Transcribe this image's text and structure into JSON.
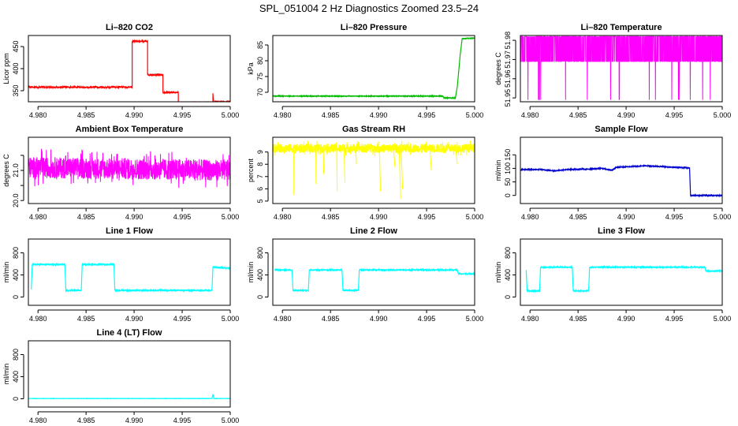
{
  "figure": {
    "suptitle": "SPL_051004  2 Hz Diagnostics Zoomed 23.5–24"
  },
  "chart_data": [
    {
      "type": "line",
      "title": "Li–820 CO2",
      "ylabel": "Licor ppm",
      "color": "#ff0000",
      "xlim": [
        4.979,
        5.0
      ],
      "xticks": [
        4.98,
        4.985,
        4.99,
        4.995,
        5.0
      ],
      "xtick_labels": [
        "4.980",
        "4.985",
        "4.990",
        "4.995",
        "5.000"
      ],
      "ylim": [
        325,
        475
      ],
      "yticks": [
        350,
        400,
        450
      ],
      "ytick_labels": [
        "350",
        "400",
        "450"
      ],
      "pattern": "steps",
      "noise": 1.5,
      "points": [
        [
          4.979,
          358
        ],
        [
          4.9898,
          358
        ],
        [
          4.9898,
          462
        ],
        [
          4.9914,
          462
        ],
        [
          4.9914,
          386
        ],
        [
          4.993,
          386
        ],
        [
          4.993,
          346
        ],
        [
          4.9946,
          346
        ],
        [
          4.9946,
          322
        ],
        [
          4.9982,
          322
        ],
        [
          4.9982,
          343
        ],
        [
          4.9983,
          316
        ],
        [
          4.9984,
          325
        ],
        [
          5.0,
          325
        ]
      ]
    },
    {
      "type": "line",
      "title": "Li–820 Pressure",
      "ylabel": "kPa",
      "color": "#00bb00",
      "xlim": [
        4.979,
        5.0
      ],
      "xticks": [
        4.98,
        4.985,
        4.99,
        4.995,
        5.0
      ],
      "xtick_labels": [
        "4.980",
        "4.985",
        "4.990",
        "4.995",
        "5.000"
      ],
      "ylim": [
        67,
        88
      ],
      "yticks": [
        70,
        75,
        80,
        85
      ],
      "ytick_labels": [
        "70",
        "75",
        "80",
        "85"
      ],
      "pattern": "steps",
      "noise": 0.1,
      "points": [
        [
          4.979,
          68.8
        ],
        [
          4.9967,
          68.8
        ],
        [
          4.9968,
          68.2
        ],
        [
          4.998,
          68.2
        ],
        [
          4.9982,
          72
        ],
        [
          4.9985,
          82
        ],
        [
          4.9987,
          87
        ],
        [
          5.0,
          87.2
        ]
      ]
    },
    {
      "type": "line",
      "title": "Li–820 Temperature",
      "ylabel": "degrees C",
      "color": "#ff00ff",
      "xlim": [
        4.979,
        5.0
      ],
      "xticks": [
        4.98,
        4.985,
        4.99,
        4.995,
        5.0
      ],
      "xtick_labels": [
        "4.980",
        "4.985",
        "4.990",
        "4.995",
        "5.000"
      ],
      "ylim": [
        51.948,
        51.9825
      ],
      "yticks": [
        51.95,
        51.96,
        51.97,
        51.98
      ],
      "ytick_labels": [
        "51.95",
        "51.96",
        "51.97",
        "51.98",
        ""
      ],
      "pattern": "binary",
      "low": 51.969,
      "high": 51.982,
      "spike_low": 51.949,
      "points": [
        [
          4.979,
          51.982
        ],
        [
          5.0,
          51.982
        ]
      ]
    },
    {
      "type": "line",
      "title": "Ambient Box Temperature",
      "ylabel": "degrees C",
      "color": "#ff00ff",
      "xlim": [
        4.979,
        5.0
      ],
      "xticks": [
        4.98,
        4.985,
        4.99,
        4.995,
        5.0
      ],
      "xtick_labels": [
        "4.980",
        "4.985",
        "4.990",
        "4.995",
        "5.000"
      ],
      "ylim": [
        19.9,
        22.1
      ],
      "yticks": [
        20.0,
        20.5,
        21.0,
        21.5
      ],
      "ytick_labels": [
        "20.0",
        "",
        "21.0",
        ""
      ],
      "pattern": "noisy",
      "noise": 0.35,
      "points": [
        [
          4.979,
          21.1
        ],
        [
          5.0,
          21.0
        ]
      ]
    },
    {
      "type": "line",
      "title": "Gas Stream RH",
      "ylabel": "percent",
      "color": "#ffff00",
      "xlim": [
        4.979,
        5.0
      ],
      "xticks": [
        4.98,
        4.985,
        4.99,
        4.995,
        5.0
      ],
      "xtick_labels": [
        "4.980",
        "4.985",
        "4.990",
        "4.995",
        "5.000"
      ],
      "ylim": [
        4.8,
        10.2
      ],
      "yticks": [
        5,
        6,
        7,
        8,
        9
      ],
      "ytick_labels": [
        "5",
        "6",
        "7",
        "8",
        "9"
      ],
      "pattern": "noisy_spikes",
      "noise": 0.35,
      "spikes": [
        [
          4.9812,
          5.5
        ],
        [
          4.9835,
          6.4
        ],
        [
          4.9843,
          7.2
        ],
        [
          4.9857,
          5.8
        ],
        [
          4.9865,
          6.5
        ],
        [
          4.9877,
          8.0
        ],
        [
          4.9902,
          5.8
        ],
        [
          4.9917,
          7.8
        ],
        [
          4.9923,
          5.2
        ],
        [
          4.9925,
          6.0
        ],
        [
          4.9955,
          7.5
        ],
        [
          4.9982,
          8.0
        ]
      ],
      "points": [
        [
          4.979,
          9.3
        ],
        [
          5.0,
          9.3
        ]
      ]
    },
    {
      "type": "line",
      "title": "Sample Flow",
      "ylabel": "ml/min",
      "color": "#0000cc",
      "xlim": [
        4.979,
        5.0
      ],
      "xticks": [
        4.98,
        4.985,
        4.99,
        4.995,
        5.0
      ],
      "xtick_labels": [
        "4.980",
        "4.985",
        "4.990",
        "4.995",
        "5.000"
      ],
      "ylim": [
        -30,
        215
      ],
      "yticks": [
        0,
        50,
        100,
        150
      ],
      "ytick_labels": [
        "0",
        "50",
        "100",
        "150"
      ],
      "pattern": "steps",
      "noise": 1.5,
      "points": [
        [
          4.979,
          95
        ],
        [
          4.981,
          96
        ],
        [
          4.9825,
          91
        ],
        [
          4.984,
          96
        ],
        [
          4.986,
          97
        ],
        [
          4.9875,
          100
        ],
        [
          4.9885,
          93
        ],
        [
          4.989,
          104
        ],
        [
          4.992,
          110
        ],
        [
          4.995,
          104
        ],
        [
          4.9966,
          102
        ],
        [
          4.9967,
          0
        ],
        [
          5.0,
          0
        ]
      ]
    },
    {
      "type": "line",
      "title": "Line 1 Flow",
      "ylabel": "ml/min",
      "color": "#00ffff",
      "xlim": [
        4.979,
        5.0
      ],
      "xticks": [
        4.98,
        4.985,
        4.99,
        4.995,
        5.0
      ],
      "xtick_labels": [
        "4.980",
        "4.985",
        "4.990",
        "4.995",
        "5.000"
      ],
      "ylim": [
        -150,
        1050
      ],
      "yticks": [
        0,
        400,
        800
      ],
      "ytick_labels": [
        "0",
        "400",
        "800"
      ],
      "pattern": "steps",
      "noise": 10,
      "points": [
        [
          4.9793,
          140
        ],
        [
          4.9794,
          590
        ],
        [
          4.9828,
          590
        ],
        [
          4.9829,
          120
        ],
        [
          4.9845,
          120
        ],
        [
          4.9846,
          590
        ],
        [
          4.9879,
          590
        ],
        [
          4.988,
          120
        ],
        [
          4.9981,
          120
        ],
        [
          4.9982,
          540
        ],
        [
          5.0,
          520
        ]
      ]
    },
    {
      "type": "line",
      "title": "Line 2 Flow",
      "ylabel": "ml/min",
      "color": "#00ffff",
      "xlim": [
        4.979,
        5.0
      ],
      "xticks": [
        4.98,
        4.985,
        4.99,
        4.995,
        5.0
      ],
      "xtick_labels": [
        "4.980",
        "4.985",
        "4.990",
        "4.995",
        "5.000"
      ],
      "ylim": [
        -150,
        1050
      ],
      "yticks": [
        0,
        400,
        800
      ],
      "ytick_labels": [
        "0",
        "400",
        "800"
      ],
      "pattern": "steps",
      "noise": 8,
      "points": [
        [
          4.9792,
          490
        ],
        [
          4.981,
          490
        ],
        [
          4.9811,
          120
        ],
        [
          4.9827,
          120
        ],
        [
          4.9828,
          490
        ],
        [
          4.9862,
          490
        ],
        [
          4.9863,
          120
        ],
        [
          4.9879,
          120
        ],
        [
          4.988,
          490
        ],
        [
          4.9982,
          490
        ],
        [
          4.9983,
          420
        ],
        [
          5.0,
          420
        ]
      ]
    },
    {
      "type": "line",
      "title": "Line 3 Flow",
      "ylabel": "ml/min",
      "color": "#00ffff",
      "xlim": [
        4.979,
        5.0
      ],
      "xticks": [
        4.98,
        4.985,
        4.99,
        4.995,
        5.0
      ],
      "xtick_labels": [
        "4.980",
        "4.985",
        "4.990",
        "4.995",
        "5.000"
      ],
      "ylim": [
        -150,
        1050
      ],
      "yticks": [
        0,
        400,
        800
      ],
      "ytick_labels": [
        "0",
        "400",
        "800"
      ],
      "pattern": "steps",
      "noise": 8,
      "points": [
        [
          4.9796,
          490
        ],
        [
          4.9797,
          110
        ],
        [
          4.981,
          110
        ],
        [
          4.9811,
          540
        ],
        [
          4.9844,
          540
        ],
        [
          4.9845,
          110
        ],
        [
          4.9861,
          110
        ],
        [
          4.9862,
          540
        ],
        [
          4.9982,
          540
        ],
        [
          4.9983,
          470
        ],
        [
          5.0,
          470
        ]
      ]
    },
    {
      "type": "line",
      "title": "Line 4 (LT) Flow",
      "ylabel": "ml/min",
      "color": "#00ffff",
      "xlim": [
        4.979,
        5.0
      ],
      "xticks": [
        4.98,
        4.985,
        4.99,
        4.995,
        5.0
      ],
      "xtick_labels": [
        "4.980",
        "4.985",
        "4.990",
        "4.995",
        "5.000"
      ],
      "ylim": [
        -150,
        1050
      ],
      "yticks": [
        0,
        400,
        800
      ],
      "ytick_labels": [
        "0",
        "400",
        "800"
      ],
      "pattern": "steps",
      "noise": 2,
      "points": [
        [
          4.979,
          5
        ],
        [
          4.9981,
          5
        ],
        [
          4.9982,
          80
        ],
        [
          4.9983,
          5
        ],
        [
          5.0,
          5
        ]
      ]
    }
  ]
}
